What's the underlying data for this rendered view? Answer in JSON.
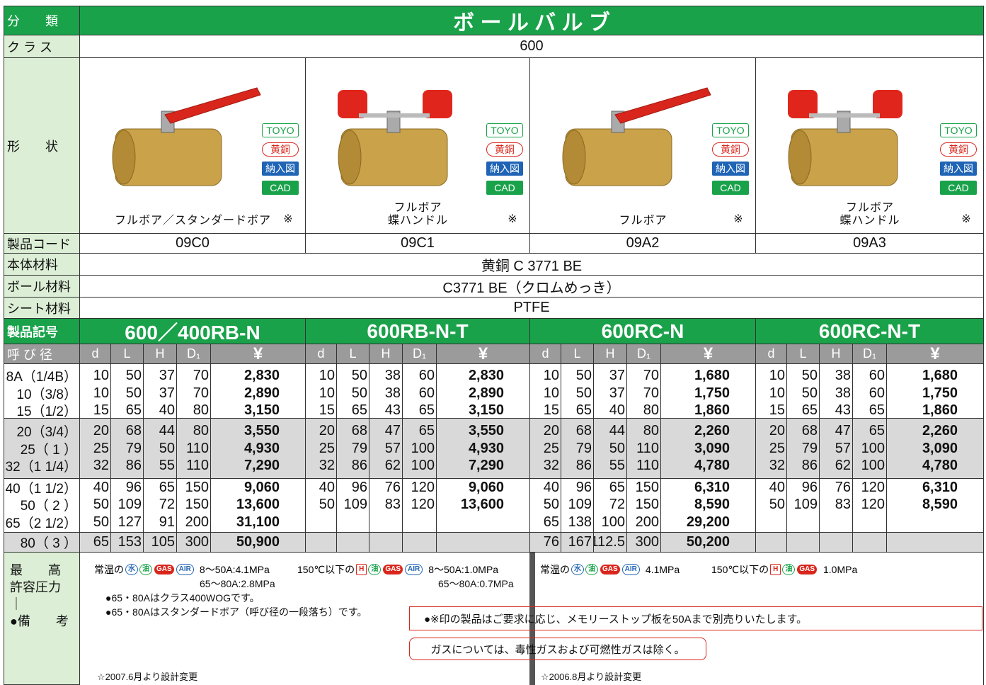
{
  "header": {
    "label": "分　　類",
    "title": "ボ ー ル バ ル ブ"
  },
  "class_row": {
    "label": "ク ラ ス",
    "value": "600"
  },
  "shape_row": {
    "label": "形　　状"
  },
  "badges": [
    "TOYO",
    "黄銅",
    "納入図",
    "CAD"
  ],
  "code_row": {
    "label": "製品コード"
  },
  "body_material": {
    "label": "本体材料",
    "value": "黄銅 C 3771 BE"
  },
  "ball_material": {
    "label": "ボール材料",
    "value": "C3771 BE（クロムめっき）"
  },
  "seat_material": {
    "label": "シート材料",
    "value": "PTFE"
  },
  "model_row": {
    "label": "製品記号"
  },
  "size_header": {
    "label": "呼 び 径",
    "columns": [
      "d",
      "L",
      "H",
      "D₁",
      "¥"
    ]
  },
  "sizes": [
    "8A（1/4B）",
    "10（3/8）",
    "15（1/2）",
    "20（3/4）",
    "25（ 1 ）",
    "32（1 1/4）",
    "40（1 1/2）",
    "50（ 2 ）",
    "65（2 1/2）",
    "80（ 3 ）"
  ],
  "products": [
    {
      "code": "09C0",
      "caption": [
        "フルボア／スタンダードボア"
      ],
      "mark": "※",
      "model": "600／400RB-N",
      "rows": [
        [
          "10",
          "50",
          "37",
          "70",
          "2,830"
        ],
        [
          "10",
          "50",
          "37",
          "70",
          "2,890"
        ],
        [
          "15",
          "65",
          "40",
          "80",
          "3,150"
        ],
        [
          "20",
          "68",
          "44",
          "80",
          "3,550"
        ],
        [
          "25",
          "79",
          "50",
          "110",
          "4,930"
        ],
        [
          "32",
          "86",
          "55",
          "110",
          "7,290"
        ],
        [
          "40",
          "96",
          "65",
          "150",
          "9,060"
        ],
        [
          "50",
          "109",
          "72",
          "150",
          "13,600"
        ],
        [
          "50",
          "127",
          "91",
          "200",
          "31,100"
        ],
        [
          "65",
          "153",
          "105",
          "300",
          "50,900"
        ]
      ]
    },
    {
      "code": "09C1",
      "caption": [
        "フルボア",
        "蝶ハンドル"
      ],
      "mark": "※",
      "model": "600RB-N-T",
      "rows": [
        [
          "10",
          "50",
          "38",
          "60",
          "2,830"
        ],
        [
          "10",
          "50",
          "38",
          "60",
          "2,890"
        ],
        [
          "15",
          "65",
          "43",
          "65",
          "3,150"
        ],
        [
          "20",
          "68",
          "47",
          "65",
          "3,550"
        ],
        [
          "25",
          "79",
          "57",
          "100",
          "4,930"
        ],
        [
          "32",
          "86",
          "62",
          "100",
          "7,290"
        ],
        [
          "40",
          "96",
          "76",
          "120",
          "9,060"
        ],
        [
          "50",
          "109",
          "83",
          "120",
          "13,600"
        ],
        null,
        null
      ]
    },
    {
      "code": "09A2",
      "caption": [
        "フルボア"
      ],
      "mark": "※",
      "model": "600RC-N",
      "rows": [
        [
          "10",
          "50",
          "37",
          "70",
          "1,680"
        ],
        [
          "10",
          "50",
          "37",
          "70",
          "1,750"
        ],
        [
          "15",
          "65",
          "40",
          "80",
          "1,860"
        ],
        [
          "20",
          "68",
          "44",
          "80",
          "2,260"
        ],
        [
          "25",
          "79",
          "50",
          "110",
          "3,090"
        ],
        [
          "32",
          "86",
          "55",
          "110",
          "4,780"
        ],
        [
          "40",
          "96",
          "65",
          "150",
          "6,310"
        ],
        [
          "50",
          "109",
          "72",
          "150",
          "8,590"
        ],
        [
          "65",
          "138",
          "100",
          "200",
          "29,200"
        ],
        [
          "76",
          "167",
          "112.5",
          "300",
          "50,200"
        ]
      ]
    },
    {
      "code": "09A3",
      "caption": [
        "フルボア",
        "蝶ハンドル"
      ],
      "mark": "※",
      "model": "600RC-N-T",
      "rows": [
        [
          "10",
          "50",
          "38",
          "60",
          "1,680"
        ],
        [
          "10",
          "50",
          "38",
          "60",
          "1,750"
        ],
        [
          "15",
          "65",
          "43",
          "65",
          "1,860"
        ],
        [
          "20",
          "68",
          "47",
          "65",
          "2,260"
        ],
        [
          "25",
          "79",
          "57",
          "100",
          "3,090"
        ],
        [
          "32",
          "86",
          "62",
          "100",
          "4,780"
        ],
        [
          "40",
          "96",
          "76",
          "120",
          "6,310"
        ],
        [
          "50",
          "109",
          "83",
          "120",
          "8,590"
        ],
        null,
        null
      ]
    }
  ],
  "notes_label": [
    "最　　高",
    "許容圧力",
    "｜",
    "●備　　考"
  ],
  "pressure": [
    {
      "prefix": "常温の",
      "icons": [
        "水",
        "油",
        "GAS",
        "AIR"
      ],
      "lines": [
        "8〜50A:4.1MPa",
        "65〜80A:2.8MPa"
      ]
    },
    {
      "prefix": "150℃以下の",
      "icons": [
        "H",
        "油",
        "GAS",
        "AIR"
      ],
      "lines": [
        "8〜50A:1.0MPa",
        "65〜80A:0.7MPa"
      ]
    },
    {
      "prefix": "常温の",
      "icons": [
        "水",
        "油",
        "GAS",
        "AIR"
      ],
      "lines": [
        "4.1MPa"
      ]
    },
    {
      "prefix": "150℃以下の",
      "icons": [
        "H",
        "油",
        "GAS"
      ],
      "lines": [
        "1.0MPa"
      ]
    }
  ],
  "remarks": [
    "●65・80Aはクラス400WOGです。",
    "●65・80Aはスタンダードボア（呼び径の一段落ち）です。"
  ],
  "boxed_notes": [
    "●※印の製品はご要求に応じ、メモリーストップ板を50Aまで別売りいたします。",
    "ガスについては、毒性ガスおよび可燃性ガスは除く。"
  ],
  "design_changes": [
    "☆2007.6月より設計変更",
    "☆2006.8月より設計変更"
  ]
}
